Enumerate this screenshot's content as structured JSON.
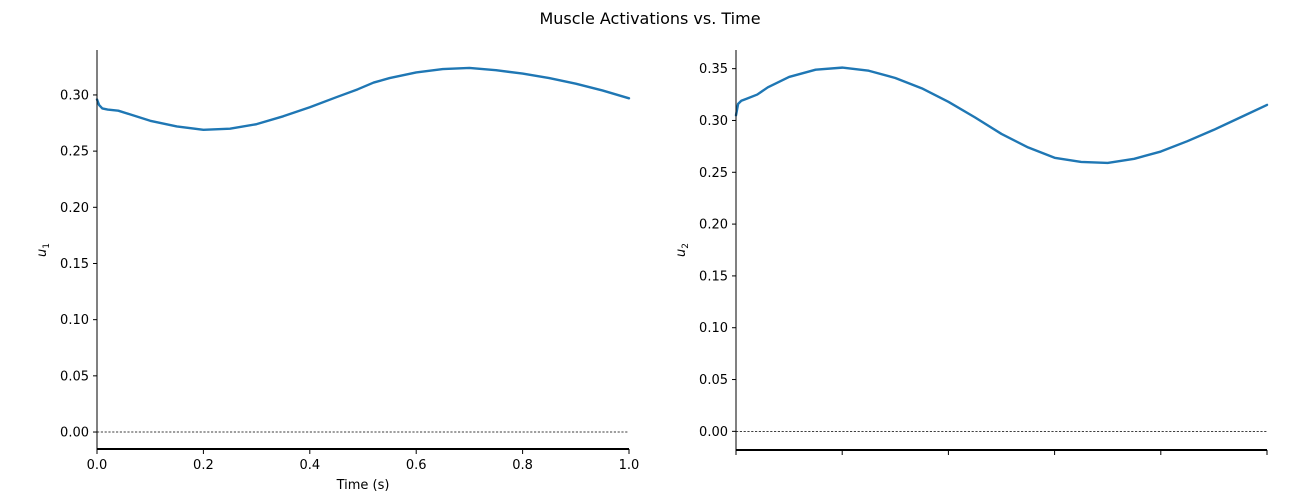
{
  "figure": {
    "title": "Muscle Activations vs. Time"
  },
  "colors": {
    "series": "#1f77b4",
    "axis": "#000000",
    "zero_line": "#000000"
  },
  "chart_data": [
    {
      "type": "line",
      "title": "",
      "xlabel": "Time (s)",
      "ylabel": "u",
      "ylabel_subscript": "1",
      "xlim": [
        0.0,
        1.0
      ],
      "ylim": [
        -0.016,
        0.34
      ],
      "xticks": [
        0.0,
        0.2,
        0.4,
        0.6,
        0.8,
        1.0
      ],
      "xtick_labels": [
        "0.0",
        "0.2",
        "0.4",
        "0.6",
        "0.8",
        "1.0"
      ],
      "yticks": [
        0.0,
        0.05,
        0.1,
        0.15,
        0.2,
        0.25,
        0.3
      ],
      "ytick_labels": [
        "0.00",
        "0.05",
        "0.10",
        "0.15",
        "0.20",
        "0.25",
        "0.30"
      ],
      "zero_line": true,
      "grid": false,
      "series": [
        {
          "x": [
            0.0,
            0.004,
            0.01,
            0.02,
            0.04,
            0.06,
            0.1,
            0.15,
            0.2,
            0.25,
            0.3,
            0.35,
            0.4,
            0.45,
            0.49,
            0.52,
            0.55,
            0.6,
            0.65,
            0.7,
            0.75,
            0.8,
            0.85,
            0.9,
            0.95,
            1.0
          ],
          "y": [
            0.296,
            0.291,
            0.288,
            0.287,
            0.286,
            0.283,
            0.277,
            0.272,
            0.269,
            0.27,
            0.274,
            0.281,
            0.289,
            0.298,
            0.305,
            0.311,
            0.315,
            0.32,
            0.323,
            0.324,
            0.322,
            0.319,
            0.315,
            0.31,
            0.304,
            0.297
          ]
        }
      ]
    },
    {
      "type": "line",
      "title": "",
      "xlabel": "",
      "ylabel": "u",
      "ylabel_subscript": "2",
      "xlim": [
        0.0,
        1.0
      ],
      "ylim": [
        -0.018,
        0.368
      ],
      "xticks": [
        0.0,
        0.2,
        0.4,
        0.6,
        0.8,
        1.0
      ],
      "xtick_labels": [],
      "yticks": [
        0.0,
        0.05,
        0.1,
        0.15,
        0.2,
        0.25,
        0.3,
        0.35
      ],
      "ytick_labels": [
        "0.00",
        "0.05",
        "0.10",
        "0.15",
        "0.20",
        "0.25",
        "0.30",
        "0.35"
      ],
      "zero_line": true,
      "grid": false,
      "series": [
        {
          "x": [
            0.0,
            0.004,
            0.01,
            0.02,
            0.04,
            0.06,
            0.1,
            0.15,
            0.2,
            0.25,
            0.3,
            0.35,
            0.4,
            0.45,
            0.5,
            0.55,
            0.6,
            0.65,
            0.7,
            0.75,
            0.8,
            0.85,
            0.9,
            0.95,
            1.0
          ],
          "y": [
            0.305,
            0.316,
            0.319,
            0.321,
            0.325,
            0.332,
            0.342,
            0.349,
            0.351,
            0.348,
            0.341,
            0.331,
            0.318,
            0.303,
            0.287,
            0.274,
            0.264,
            0.26,
            0.259,
            0.263,
            0.27,
            0.28,
            0.291,
            0.303,
            0.315
          ]
        }
      ]
    }
  ]
}
